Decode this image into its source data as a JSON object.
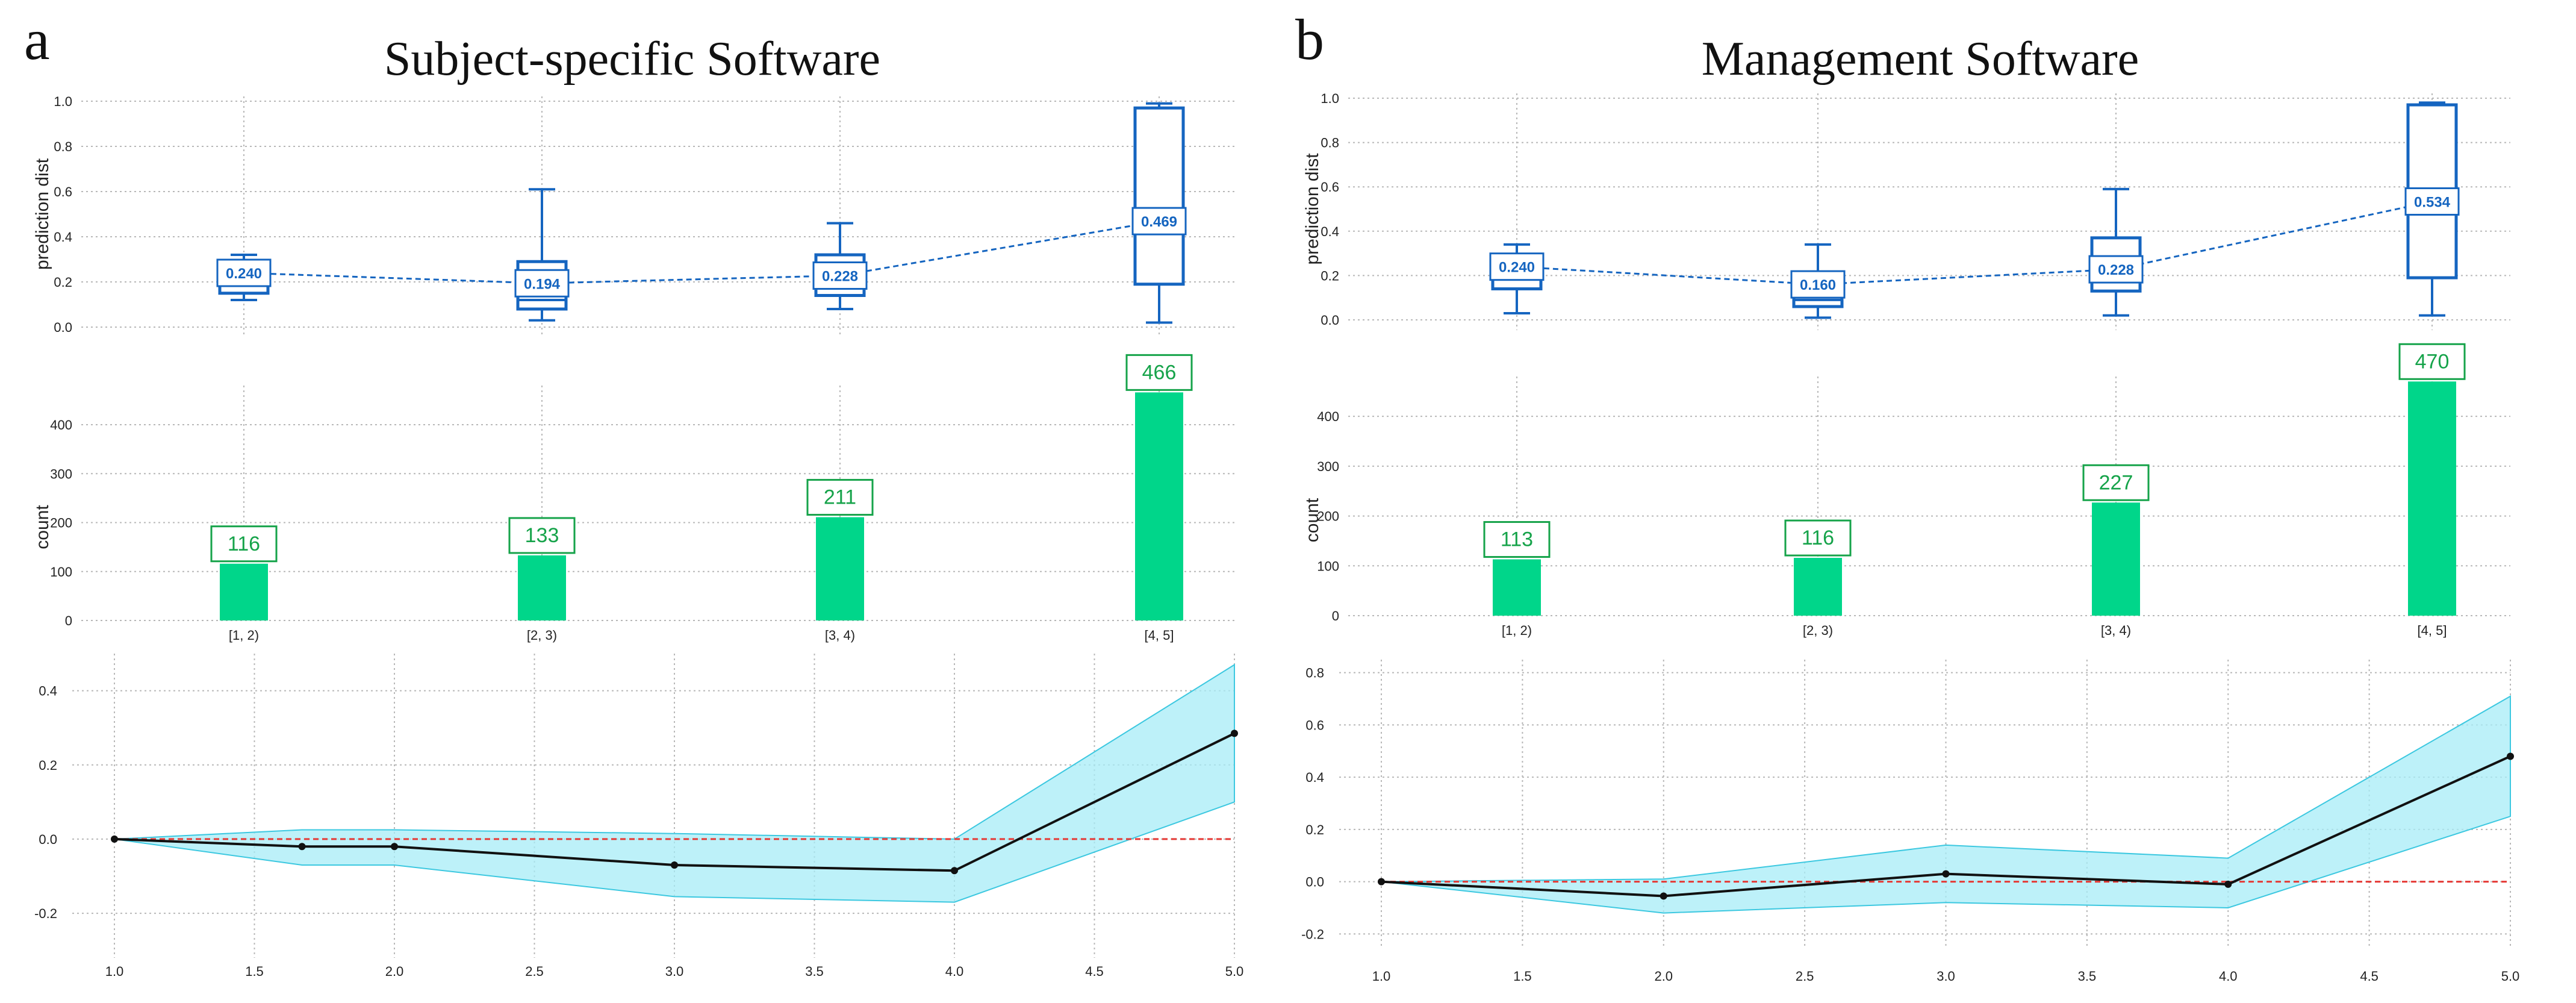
{
  "colors": {
    "box": "#1565c0",
    "bar": "#00d68a",
    "bar_label": "#16a34a",
    "band": "#a7ecf7",
    "band_edge": "#3cc8e0",
    "line": "#111111",
    "ref_line": "#e53935",
    "grid": "#b8b8b8"
  },
  "chart_data": [
    {
      "letter": "a",
      "title": "Subject-specific Software",
      "box": {
        "type": "box",
        "ylabel": "prediction dist",
        "ylim": [
          0,
          1
        ],
        "yticks": [
          "0.0",
          "0.2",
          "0.4",
          "0.6",
          "0.8",
          "1.0"
        ],
        "categories": [
          "[1, 2)",
          "[2, 3)",
          "[3, 4)",
          "[4, 5]"
        ],
        "boxes": [
          {
            "whisker_low": 0.12,
            "q1": 0.15,
            "median": 0.22,
            "q3": 0.26,
            "whisker_high": 0.32,
            "mean": 0.24,
            "mean_label": "0.240"
          },
          {
            "whisker_low": 0.03,
            "q1": 0.08,
            "median": 0.12,
            "q3": 0.29,
            "whisker_high": 0.61,
            "mean": 0.194,
            "mean_label": "0.194"
          },
          {
            "whisker_low": 0.08,
            "q1": 0.14,
            "median": 0.22,
            "q3": 0.32,
            "whisker_high": 0.46,
            "mean": 0.228,
            "mean_label": "0.228"
          },
          {
            "whisker_low": 0.02,
            "q1": 0.19,
            "median": 0.47,
            "q3": 0.97,
            "whisker_high": 0.99,
            "mean": 0.469,
            "mean_label": "0.469"
          }
        ]
      },
      "bar": {
        "type": "bar",
        "ylabel": "count",
        "ylim": [
          0,
          480
        ],
        "yticks": [
          "0",
          "100",
          "200",
          "300",
          "400"
        ],
        "categories": [
          "[1, 2)",
          "[2, 3)",
          "[3, 4)",
          "[4, 5]"
        ],
        "values": [
          116,
          133,
          211,
          466
        ],
        "labels": [
          "116",
          "133",
          "211",
          "466"
        ]
      },
      "line": {
        "type": "line",
        "xlim": [
          1.0,
          5.0
        ],
        "xticks": [
          "1.0",
          "1.5",
          "2.0",
          "2.5",
          "3.0",
          "3.5",
          "4.0",
          "4.5",
          "5.0"
        ],
        "ylim": [
          -0.32,
          0.5
        ],
        "yticks": [
          "-0.2",
          "0.0",
          "0.2",
          "0.4"
        ],
        "x": [
          1.0,
          1.67,
          2.0,
          3.0,
          4.0,
          5.0
        ],
        "y": [
          0.0,
          -0.02,
          -0.02,
          -0.07,
          -0.085,
          0.285
        ],
        "band_upper": [
          0.0,
          0.025,
          0.025,
          0.015,
          0.0,
          0.47
        ],
        "band_lower": [
          0.0,
          -0.07,
          -0.07,
          -0.155,
          -0.17,
          0.1
        ],
        "ref_y": 0.0
      }
    },
    {
      "letter": "b",
      "title": "Management Software",
      "box": {
        "type": "box",
        "ylabel": "prediction dist",
        "ylim": [
          0,
          1
        ],
        "yticks": [
          "0.0",
          "0.2",
          "0.4",
          "0.6",
          "0.8",
          "1.0"
        ],
        "categories": [
          "[1, 2)",
          "[2, 3)",
          "[3, 4)",
          "[4, 5]"
        ],
        "boxes": [
          {
            "whisker_low": 0.03,
            "q1": 0.14,
            "median": 0.22,
            "q3": 0.27,
            "whisker_high": 0.34,
            "mean": 0.24,
            "mean_label": "0.240"
          },
          {
            "whisker_low": 0.01,
            "q1": 0.06,
            "median": 0.09,
            "q3": 0.19,
            "whisker_high": 0.34,
            "mean": 0.16,
            "mean_label": "0.160"
          },
          {
            "whisker_low": 0.02,
            "q1": 0.13,
            "median": 0.2,
            "q3": 0.37,
            "whisker_high": 0.59,
            "mean": 0.228,
            "mean_label": "0.228"
          },
          {
            "whisker_low": 0.02,
            "q1": 0.19,
            "median": 0.55,
            "q3": 0.97,
            "whisker_high": 0.98,
            "mean": 0.534,
            "mean_label": "0.534"
          }
        ]
      },
      "bar": {
        "type": "bar",
        "ylabel": "count",
        "ylim": [
          0,
          480
        ],
        "yticks": [
          "0",
          "100",
          "200",
          "300",
          "400"
        ],
        "categories": [
          "[1, 2)",
          "[2, 3)",
          "[3, 4)",
          "[4, 5]"
        ],
        "values": [
          113,
          116,
          227,
          470
        ],
        "labels": [
          "113",
          "116",
          "227",
          "470"
        ]
      },
      "line": {
        "type": "line",
        "xlim": [
          1.0,
          5.0
        ],
        "xticks": [
          "1.0",
          "1.5",
          "2.0",
          "2.5",
          "3.0",
          "3.5",
          "4.0",
          "4.5",
          "5.0"
        ],
        "ylim": [
          -0.25,
          0.85
        ],
        "yticks": [
          "-0.2",
          "0.0",
          "0.2",
          "0.4",
          "0.6",
          "0.8"
        ],
        "x": [
          1.0,
          2.0,
          3.0,
          4.0,
          5.0
        ],
        "y": [
          0.0,
          -0.055,
          0.03,
          -0.01,
          0.48
        ],
        "band_upper": [
          0.0,
          0.01,
          0.14,
          0.09,
          0.71
        ],
        "band_lower": [
          0.0,
          -0.12,
          -0.08,
          -0.1,
          0.25
        ],
        "ref_y": 0.0
      }
    }
  ]
}
